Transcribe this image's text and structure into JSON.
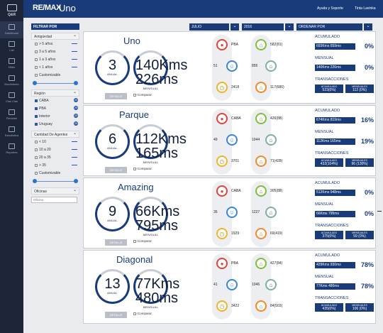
{
  "nav": {
    "logo": "Q&R",
    "items": [
      {
        "label": "Dashboard",
        "icon": "dashboard-icon"
      },
      {
        "label": "List",
        "icon": "list-icon"
      },
      {
        "label": "Hitter",
        "icon": "hitter-icon"
      },
      {
        "label": "Movimiento",
        "icon": "movement-icon"
      },
      {
        "label": "Clas Clas",
        "icon": "class-icon"
      },
      {
        "label": "Revisión",
        "icon": "review-icon"
      },
      {
        "label": "Estadística",
        "icon": "stats-icon"
      },
      {
        "label": "Reportes",
        "icon": "reports-icon"
      }
    ]
  },
  "header": {
    "brand": "RE/MAX",
    "app_name": "Uno",
    "help_link": "Ayuda y Soporte",
    "user": "Tinta Lavinka"
  },
  "filters": {
    "title": "FILTRAR POR",
    "antiguedad": {
      "label": "Antigüedad",
      "options": [
        "> 5 años",
        "3 a 5 años",
        "1 a 3 años",
        "< 1 años"
      ],
      "custom_label": "Customizable"
    },
    "region": {
      "label": "Región",
      "options": [
        {
          "label": "CABA",
          "count": "29"
        },
        {
          "label": "PBA",
          "count": "29"
        },
        {
          "label": "Interior",
          "count": "29"
        },
        {
          "label": "Uruguay",
          "count": "29"
        }
      ]
    },
    "agentes": {
      "label": "Cantidad De Agentes",
      "options": [
        "< 10",
        "10 a 20",
        "20 a 35",
        "> 35"
      ],
      "custom_label": "Customizable"
    },
    "oficinas": {
      "label": "Oficinas",
      "placeholder": "Oficina"
    }
  },
  "selectors": {
    "month": "JULIO",
    "year": "2016",
    "order": "ORDENAR POR"
  },
  "labels": {
    "anual": "ANUAL",
    "mensual": "MENSUAL",
    "detalle": "DETALLE",
    "comparar": "Comparar",
    "acumulado": "ACUMULADO",
    "mensual_head": "MENSUAL",
    "transacciones": "TRANSACCIONES",
    "acum_small": "ACUMULADO",
    "mens_small": "MENSUALES"
  },
  "offices": [
    {
      "name": "Uno",
      "anual": "3",
      "mensual": "140Kms 226ms",
      "location": "PBA",
      "agents": "51",
      "time": "2418",
      "properties": "582(81)",
      "visits": "855",
      "sales": "117(686)",
      "acumulado": "693Kms 659ms",
      "acumulado_pct": "0%",
      "mensual_pct": "0%",
      "trans_acum": "523(0%)",
      "trans_mens": "112 (0%)"
    },
    {
      "name": "Parque",
      "anual": "6",
      "mensual": "112Kms 165ms",
      "location": "CABA",
      "agents": "49",
      "time": "3701",
      "properties": "426(88)",
      "visits": "1044",
      "sales": "71(428)",
      "acumulado": "674Kms 819ms",
      "acumulado_pct": "16%",
      "mensual_pct": "19%",
      "trans_acum": "432(104%)",
      "trans_mens": "96 (130%)"
    },
    {
      "name": "Amazing",
      "anual": "9",
      "mensual": "66Kms 795ms",
      "location": "CABA",
      "agents": "35",
      "time": "1929",
      "properties": "305(88)",
      "visits": "1227",
      "sales": "69(419)",
      "acumulado": "512Kms 948ms",
      "acumulado_pct": "0%",
      "mensual_pct": "0%",
      "trans_acum": "375(0%)",
      "trans_mens": "59 (0%)"
    },
    {
      "name": "Diagonal",
      "anual": "13",
      "mensual": "77Kms 480ms",
      "location": "PBA",
      "agents": "41",
      "time": "3422",
      "properties": "427(84)",
      "visits": "1046",
      "sales": "84(503)",
      "acumulado": "429Kms 930ms",
      "acumulado_pct": "78%",
      "mensual_pct": "78%",
      "trans_acum": "435(0%)",
      "trans_mens": "106 (0%)"
    }
  ]
}
